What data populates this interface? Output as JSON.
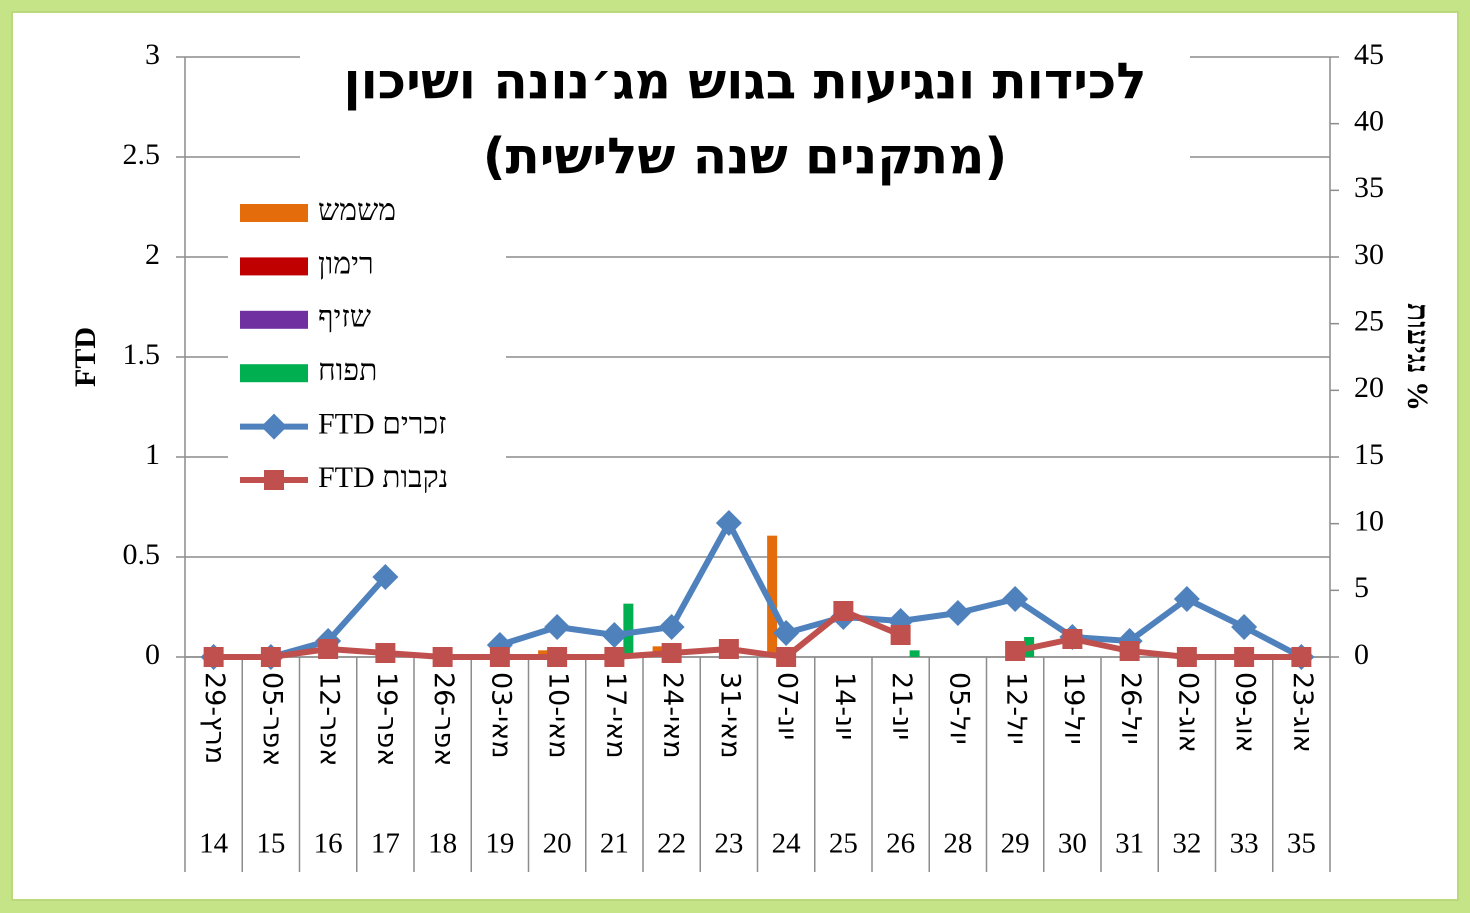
{
  "chart_data": {
    "type": "bar_line",
    "title": "לכידות ונגיעות בגוש מג׳נונה ושיכון",
    "subtitle": "(מתקנים שנה שלישית)",
    "ylabel": "FTD",
    "y2label": "% נגיעות",
    "categories": [
      "29-מרץ",
      "05-אפר",
      "12-אפר",
      "19-אפר",
      "26-אפר",
      "03-מאי",
      "10-מאי",
      "17-מאי",
      "24-מאי",
      "31-מאי",
      "07-יונ",
      "14-יונ",
      "21-יונ",
      "05-יול",
      "12-יול",
      "19-יול",
      "26-יול",
      "02-אוג",
      "09-אוג",
      "23-אוג"
    ],
    "weeks": [
      "14",
      "15",
      "16",
      "17",
      "18",
      "19",
      "20",
      "21",
      "22",
      "23",
      "24",
      "25",
      "26",
      "28",
      "29",
      "30",
      "31",
      "32",
      "33",
      "35"
    ],
    "ylim": [
      0,
      3
    ],
    "yticks": [
      0,
      0.5,
      1,
      1.5,
      2,
      2.5,
      3
    ],
    "y2lim": [
      0,
      45
    ],
    "y2ticks": [
      0,
      5,
      10,
      15,
      20,
      25,
      30,
      35,
      40,
      45
    ],
    "grid": true,
    "legend": "upper left",
    "series": [
      {
        "name": "משמש",
        "type": "bar",
        "axis": "y2",
        "color": "#e46c0a",
        "values": [
          null,
          null,
          null,
          null,
          null,
          null,
          0.5,
          null,
          0.8,
          null,
          9.1,
          null,
          null,
          null,
          null,
          null,
          null,
          null,
          null,
          null
        ]
      },
      {
        "name": "רימון",
        "type": "bar",
        "axis": "y2",
        "color": "#c00000",
        "values": [
          null,
          null,
          null,
          null,
          null,
          null,
          null,
          null,
          null,
          null,
          null,
          null,
          null,
          null,
          null,
          null,
          null,
          null,
          null,
          null
        ]
      },
      {
        "name": "שזיף",
        "type": "bar",
        "axis": "y2",
        "color": "#7030a0",
        "values": [
          null,
          null,
          null,
          null,
          null,
          null,
          null,
          null,
          null,
          null,
          null,
          null,
          null,
          null,
          null,
          null,
          null,
          null,
          null,
          null
        ]
      },
      {
        "name": "תפוח",
        "type": "bar",
        "axis": "y2",
        "color": "#00b050",
        "values": [
          null,
          null,
          null,
          null,
          null,
          null,
          null,
          4,
          null,
          null,
          null,
          null,
          0.5,
          null,
          1.5,
          null,
          null,
          null,
          null,
          null
        ]
      },
      {
        "name": "זכרים FTD",
        "type": "line",
        "marker": "diamond",
        "color": "#4f81bd",
        "values": [
          0,
          0,
          0.08,
          0.4,
          null,
          0.06,
          0.15,
          0.11,
          0.15,
          0.67,
          0.12,
          0.2,
          0.18,
          0.22,
          0.29,
          0.1,
          0.08,
          0.29,
          0.15,
          0
        ]
      },
      {
        "name": "נקבות FTD",
        "type": "line",
        "marker": "square",
        "color": "#c0504d",
        "values": [
          0,
          0,
          0.04,
          0.02,
          0,
          0,
          0,
          0,
          0.02,
          0.04,
          0,
          0.23,
          0.11,
          null,
          0.03,
          0.09,
          0.03,
          0,
          0,
          0
        ]
      }
    ]
  }
}
